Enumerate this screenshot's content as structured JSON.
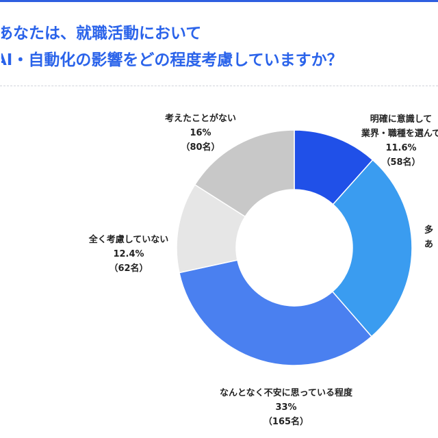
{
  "title": {
    "line1": "あなたは、就職活動において",
    "line2": "AI・自動化の影響をどの程度考慮していますか？"
  },
  "colors": {
    "accent": "#2a63ea",
    "border": "#2f5fe0",
    "divider": "#cfd3da"
  },
  "chart_data": {
    "type": "pie",
    "donut": true,
    "slices": [
      {
        "label": "明確に意識して業界・職種を選んで",
        "pct_label": "11.6%",
        "count_label": "（58名）",
        "value": 11.6,
        "color": "#2050e8"
      },
      {
        "label": "多…あ…",
        "pct_label": "",
        "count_label": "",
        "value": 27,
        "color": "#3a9cf0"
      },
      {
        "label": "なんとなく不安に思っている程度",
        "pct_label": "33%",
        "count_label": "（165名）",
        "value": 33,
        "color": "#4a80f0"
      },
      {
        "label": "全く考慮していない",
        "pct_label": "12.4%",
        "count_label": "（62名）",
        "value": 12.4,
        "color": "#e6e6e6"
      },
      {
        "label": "考えたことがない",
        "pct_label": "16%",
        "count_label": "（80名）",
        "value": 16,
        "color": "#c8c8c8"
      }
    ]
  },
  "labels": {
    "explicit_line1": "明確に意識して",
    "explicit_line2": "業界・職種を選んで",
    "considered_line1": "多",
    "considered_line2": "あ",
    "anxious": "なんとなく不安に思っている程度",
    "not_considered": "全く考慮していない",
    "never_thought": "考えたことがない"
  }
}
